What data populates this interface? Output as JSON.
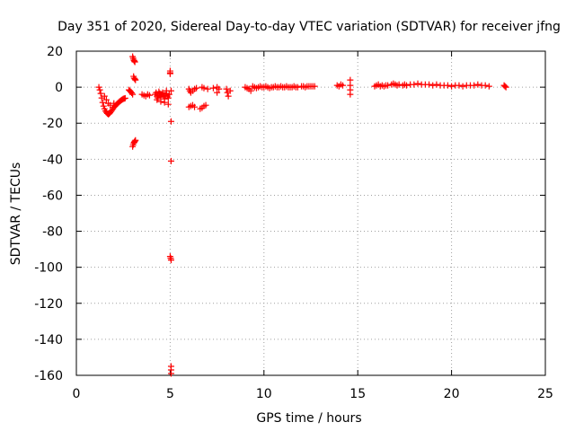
{
  "chart_data": {
    "type": "scatter",
    "title": "Day 351 of 2020, Sidereal Day-to-day VTEC variation (SDTVAR) for receiver jfng",
    "xlabel": "GPS time / hours",
    "ylabel": "SDTVAR / TECUs",
    "xlim": [
      0,
      25
    ],
    "ylim": [
      -160,
      20
    ],
    "xticks": [
      "0",
      "5",
      "10",
      "15",
      "20",
      "25"
    ],
    "yticks": [
      "20",
      "0",
      "-20",
      "-40",
      "-60",
      "-80",
      "-100",
      "-120",
      "-140",
      "-160"
    ],
    "grid": true,
    "marker": "plus",
    "color": "#ff0000",
    "series": [
      {
        "points": [
          [
            1.2,
            0.0
          ],
          [
            1.25,
            -1.5
          ],
          [
            1.3,
            -3.5
          ],
          [
            1.35,
            -6.0
          ],
          [
            1.4,
            -8.5
          ],
          [
            1.45,
            -10.5
          ],
          [
            1.5,
            -12.0
          ],
          [
            1.55,
            -13.2
          ],
          [
            1.6,
            -14.0
          ],
          [
            1.65,
            -14.6
          ],
          [
            1.7,
            -15.0
          ],
          [
            1.75,
            -14.8
          ],
          [
            1.8,
            -14.2
          ],
          [
            1.85,
            -13.5
          ],
          [
            1.9,
            -12.8
          ],
          [
            1.95,
            -12.0
          ],
          [
            2.0,
            -11.2
          ],
          [
            2.05,
            -10.6
          ],
          [
            2.1,
            -10.0
          ],
          [
            2.15,
            -9.5
          ],
          [
            2.2,
            -9.0
          ],
          [
            2.25,
            -8.5
          ],
          [
            2.3,
            -8.0
          ],
          [
            2.35,
            -7.6
          ],
          [
            2.4,
            -7.2
          ],
          [
            2.45,
            -6.8
          ],
          [
            2.5,
            -6.5
          ],
          [
            2.55,
            -6.3
          ],
          [
            2.6,
            -6.1
          ],
          [
            1.5,
            -5.0
          ],
          [
            1.6,
            -7.0
          ],
          [
            1.7,
            -9.0
          ],
          [
            1.8,
            -10.0
          ],
          [
            2.0,
            -9.0
          ],
          [
            2.8,
            -1.5
          ],
          [
            2.85,
            -2.0
          ],
          [
            2.9,
            -2.5
          ],
          [
            2.95,
            -3.2
          ],
          [
            3.0,
            -4.0
          ],
          [
            3.0,
            -33.0
          ],
          [
            3.03,
            -32.0
          ],
          [
            3.06,
            -31.0
          ],
          [
            3.09,
            -30.5
          ],
          [
            3.12,
            -30.0
          ],
          [
            3.15,
            -29.5
          ],
          [
            3.0,
            17.0
          ],
          [
            3.03,
            16.0
          ],
          [
            3.06,
            15.0
          ],
          [
            3.09,
            14.5
          ],
          [
            3.12,
            14.0
          ],
          [
            3.05,
            6.0
          ],
          [
            3.08,
            5.0
          ],
          [
            3.12,
            4.5
          ],
          [
            3.15,
            4.0
          ],
          [
            3.5,
            -4.0
          ],
          [
            3.6,
            -4.5
          ],
          [
            3.7,
            -5.0
          ],
          [
            3.8,
            -4.0
          ],
          [
            3.9,
            -4.5
          ],
          [
            4.2,
            -4.0
          ],
          [
            4.25,
            -3.0
          ],
          [
            4.3,
            -5.0
          ],
          [
            4.35,
            -6.0
          ],
          [
            4.4,
            -4.5
          ],
          [
            4.45,
            -3.5
          ],
          [
            4.5,
            -5.5
          ],
          [
            4.55,
            -4.0
          ],
          [
            4.6,
            -3.0
          ],
          [
            4.65,
            -5.0
          ],
          [
            4.7,
            -6.5
          ],
          [
            4.75,
            -4.5
          ],
          [
            4.8,
            -3.5
          ],
          [
            4.85,
            -5.0
          ],
          [
            4.9,
            -6.0
          ],
          [
            4.95,
            -4.0
          ],
          [
            4.3,
            -7.0
          ],
          [
            4.5,
            -8.0
          ],
          [
            4.7,
            -8.5
          ],
          [
            4.9,
            -9.5
          ],
          [
            4.4,
            -2.5
          ],
          [
            4.8,
            -2.0
          ],
          [
            5.0,
            9.0
          ],
          [
            5.0,
            8.0
          ],
          [
            5.0,
            7.5
          ],
          [
            5.05,
            -2.0
          ],
          [
            5.05,
            -19.0
          ],
          [
            5.05,
            -41.0
          ],
          [
            5.0,
            -94.0
          ],
          [
            5.03,
            -95.0
          ],
          [
            5.05,
            -96.0
          ],
          [
            5.05,
            -155.0
          ],
          [
            5.05,
            -157.0
          ],
          [
            5.05,
            -159.0
          ],
          [
            6.0,
            -1.0
          ],
          [
            6.05,
            -2.0
          ],
          [
            6.1,
            -3.0
          ],
          [
            6.2,
            -2.0
          ],
          [
            6.3,
            -1.0
          ],
          [
            6.4,
            -0.5
          ],
          [
            6.0,
            -11.0
          ],
          [
            6.1,
            -10.5
          ],
          [
            6.2,
            -10.0
          ],
          [
            6.3,
            -11.0
          ],
          [
            6.6,
            -12.0
          ],
          [
            6.7,
            -11.5
          ],
          [
            6.8,
            -10.5
          ],
          [
            6.9,
            -10.0
          ],
          [
            6.7,
            0.0
          ],
          [
            6.8,
            -0.5
          ],
          [
            7.0,
            -1.0
          ],
          [
            7.3,
            -0.5
          ],
          [
            7.5,
            0.0
          ],
          [
            7.6,
            -1.0
          ],
          [
            7.5,
            -3.0
          ],
          [
            8.0,
            -1.0
          ],
          [
            8.05,
            -3.0
          ],
          [
            8.1,
            -5.0
          ],
          [
            8.2,
            -2.0
          ],
          [
            9.0,
            0.0
          ],
          [
            9.1,
            -0.5
          ],
          [
            9.2,
            -1.0
          ],
          [
            9.3,
            -2.0
          ],
          [
            9.4,
            0.5
          ],
          [
            9.5,
            0.0
          ],
          [
            9.6,
            -0.5
          ],
          [
            9.7,
            0.0
          ],
          [
            9.8,
            0.5
          ],
          [
            9.9,
            0.0
          ],
          [
            10.0,
            0.0
          ],
          [
            10.1,
            0.5
          ],
          [
            10.2,
            0.0
          ],
          [
            10.3,
            -0.5
          ],
          [
            10.4,
            0.0
          ],
          [
            10.5,
            0.0
          ],
          [
            10.6,
            0.5
          ],
          [
            10.7,
            0.0
          ],
          [
            10.8,
            0.0
          ],
          [
            10.9,
            0.5
          ],
          [
            11.0,
            0.0
          ],
          [
            11.1,
            0.0
          ],
          [
            11.2,
            0.5
          ],
          [
            11.3,
            0.0
          ],
          [
            11.4,
            0.0
          ],
          [
            11.5,
            0.0
          ],
          [
            11.6,
            0.5
          ],
          [
            11.7,
            0.0
          ],
          [
            11.8,
            0.0
          ],
          [
            12.0,
            0.5
          ],
          [
            12.1,
            0.5
          ],
          [
            12.2,
            0.0
          ],
          [
            12.3,
            0.5
          ],
          [
            12.4,
            0.5
          ],
          [
            12.5,
            0.5
          ],
          [
            12.6,
            0.5
          ],
          [
            12.7,
            0.5
          ],
          [
            13.9,
            1.0
          ],
          [
            14.0,
            0.5
          ],
          [
            14.1,
            1.5
          ],
          [
            14.2,
            1.0
          ],
          [
            14.6,
            4.0
          ],
          [
            14.6,
            1.0
          ],
          [
            14.6,
            -1.5
          ],
          [
            14.6,
            -4.0
          ],
          [
            15.9,
            0.5
          ],
          [
            16.0,
            1.0
          ],
          [
            16.1,
            1.5
          ],
          [
            16.2,
            0.5
          ],
          [
            16.3,
            1.0
          ],
          [
            16.4,
            0.5
          ],
          [
            16.5,
            1.0
          ],
          [
            16.6,
            1.0
          ],
          [
            16.8,
            1.5
          ],
          [
            16.9,
            2.0
          ],
          [
            17.0,
            1.5
          ],
          [
            17.1,
            1.0
          ],
          [
            17.2,
            1.5
          ],
          [
            17.4,
            1.0
          ],
          [
            17.5,
            1.5
          ],
          [
            17.6,
            1.0
          ],
          [
            17.8,
            1.5
          ],
          [
            18.0,
            1.5
          ],
          [
            18.2,
            2.0
          ],
          [
            18.4,
            1.5
          ],
          [
            18.6,
            1.5
          ],
          [
            18.8,
            1.5
          ],
          [
            19.0,
            1.0
          ],
          [
            19.2,
            1.5
          ],
          [
            19.4,
            1.0
          ],
          [
            19.6,
            1.0
          ],
          [
            19.8,
            1.0
          ],
          [
            20.0,
            0.5
          ],
          [
            20.2,
            1.0
          ],
          [
            20.4,
            1.0
          ],
          [
            20.6,
            0.5
          ],
          [
            20.8,
            1.0
          ],
          [
            21.0,
            1.0
          ],
          [
            21.2,
            1.0
          ],
          [
            21.4,
            1.5
          ],
          [
            21.6,
            1.0
          ],
          [
            21.8,
            1.0
          ],
          [
            22.0,
            0.5
          ],
          [
            22.8,
            1.0
          ],
          [
            22.85,
            0.5
          ],
          [
            22.9,
            0.0
          ]
        ]
      }
    ]
  }
}
